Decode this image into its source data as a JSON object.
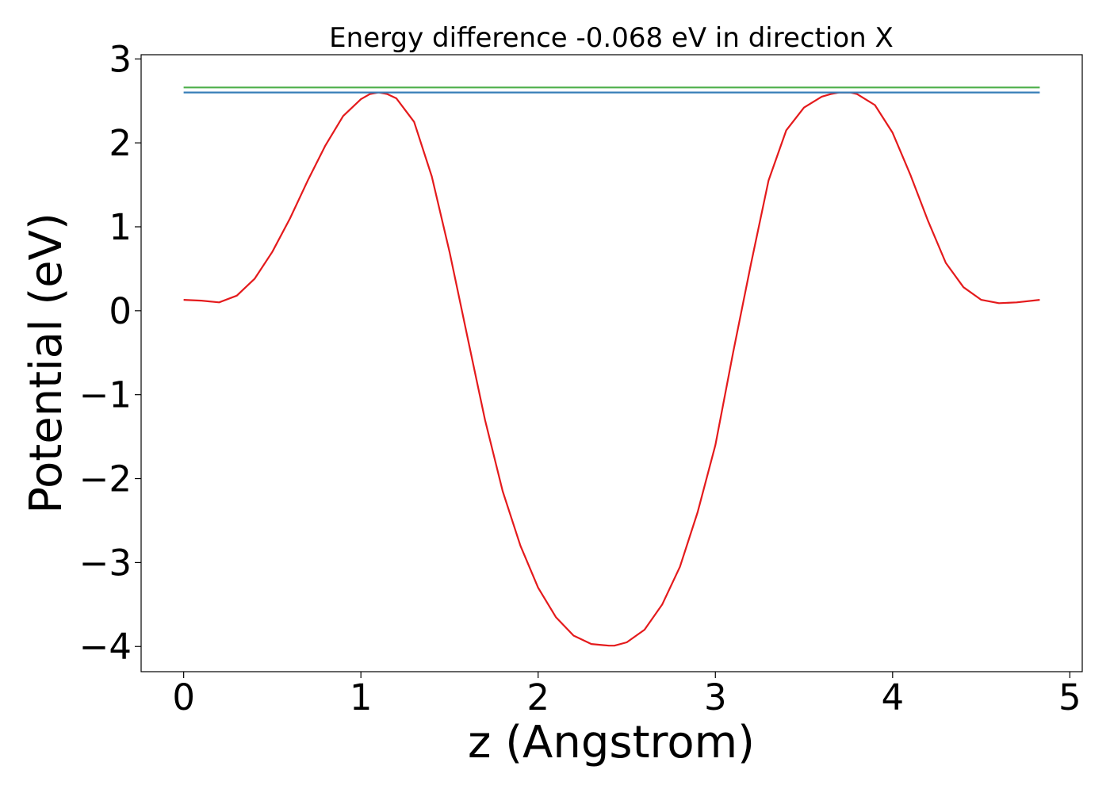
{
  "chart_data": {
    "type": "line",
    "title": "Energy difference -0.068 eV in direction X",
    "xlabel": "z (Angstrom)",
    "ylabel": "Potential (eV)",
    "xlim": [
      -0.24,
      5.07
    ],
    "ylim": [
      -4.3,
      3.05
    ],
    "xticks": [
      0,
      1,
      2,
      3,
      4,
      5
    ],
    "xtick_labels": [
      "0",
      "1",
      "2",
      "3",
      "4",
      "5"
    ],
    "yticks": [
      -4,
      -3,
      -2,
      -1,
      0,
      1,
      2,
      3
    ],
    "ytick_labels": [
      "−4",
      "−3",
      "−2",
      "−1",
      "0",
      "1",
      "2",
      "3"
    ],
    "grid": false,
    "series": [
      {
        "color": "#e41a1c",
        "x": [
          0.0,
          0.1,
          0.2,
          0.3,
          0.4,
          0.5,
          0.6,
          0.7,
          0.8,
          0.9,
          1.0,
          1.05,
          1.1,
          1.15,
          1.2,
          1.3,
          1.4,
          1.5,
          1.6,
          1.7,
          1.8,
          1.9,
          2.0,
          2.1,
          2.2,
          2.3,
          2.4,
          2.43,
          2.5,
          2.6,
          2.7,
          2.8,
          2.9,
          3.0,
          3.1,
          3.2,
          3.3,
          3.4,
          3.5,
          3.6,
          3.65,
          3.7,
          3.76,
          3.8,
          3.9,
          4.0,
          4.1,
          4.2,
          4.3,
          4.4,
          4.5,
          4.6,
          4.7,
          4.83
        ],
        "y": [
          0.13,
          0.12,
          0.1,
          0.18,
          0.38,
          0.7,
          1.1,
          1.55,
          1.97,
          2.32,
          2.52,
          2.58,
          2.6,
          2.58,
          2.53,
          2.25,
          1.6,
          0.7,
          -0.3,
          -1.3,
          -2.15,
          -2.8,
          -3.3,
          -3.65,
          -3.87,
          -3.97,
          -3.99,
          -3.99,
          -3.95,
          -3.8,
          -3.5,
          -3.05,
          -2.4,
          -1.6,
          -0.5,
          0.55,
          1.55,
          2.15,
          2.42,
          2.55,
          2.58,
          2.6,
          2.6,
          2.58,
          2.45,
          2.12,
          1.62,
          1.07,
          0.57,
          0.28,
          0.13,
          0.09,
          0.1,
          0.13
        ]
      },
      {
        "color": "#4daf4a",
        "x": [
          0.0,
          4.83
        ],
        "y": [
          2.66,
          2.66
        ]
      },
      {
        "color": "#377eb8",
        "x": [
          0.0,
          4.83
        ],
        "y": [
          2.6,
          2.6
        ]
      }
    ]
  }
}
